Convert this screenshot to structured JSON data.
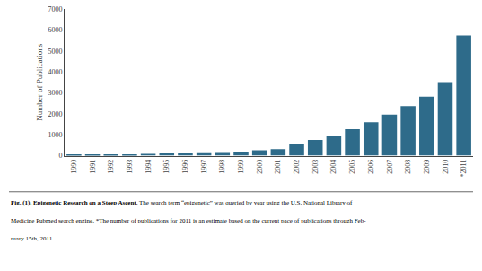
{
  "chart_data": {
    "type": "bar",
    "title": "Fig. (1). Epigenetic Research on a Steep Ascent.",
    "annotations": [
      " The search term “epigenetic” was queried by year using the U.S. National Library of",
      "Medicine Pubmed search engine. *The number of publications for 2011 is an estimate based on the current pace of publications through Feb-",
      "ruary 15th, 2011."
    ],
    "ylabel": "Number of Publications",
    "categories": [
      "1990",
      "1991",
      "1992",
      "1993",
      "1994",
      "1995",
      "1996",
      "1997",
      "1998",
      "1999",
      "2000",
      "2001",
      "2002",
      "2003",
      "2004",
      "2005",
      "2006",
      "2007",
      "2008",
      "2009",
      "2010",
      "*2011"
    ],
    "values": [
      50,
      45,
      55,
      70,
      90,
      115,
      140,
      160,
      180,
      200,
      260,
      315,
      555,
      755,
      925,
      1265,
      1595,
      1960,
      2365,
      2815,
      3510,
      5740
    ],
    "color": "#2e6b8a",
    "ylim": [
      0,
      7000
    ],
    "yticks": [
      0,
      1000,
      2000,
      3000,
      4000,
      5000,
      6000,
      7000
    ],
    "grid": false
  }
}
